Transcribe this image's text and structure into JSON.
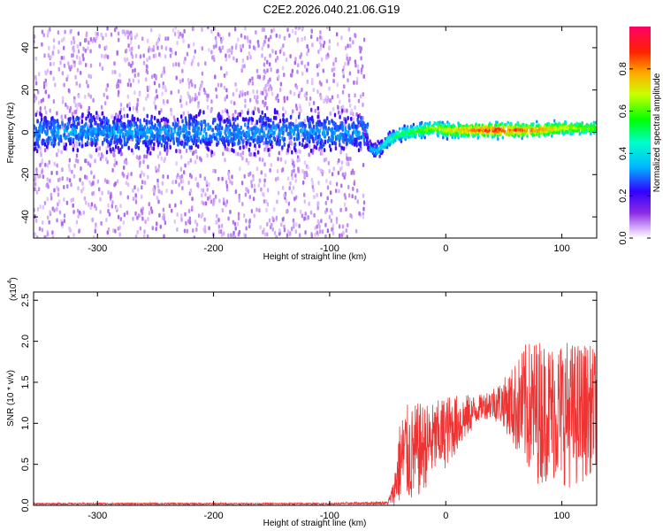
{
  "title": "C2E2.2026.040.21.06.G19",
  "colors": {
    "signal": "#ee3333",
    "axis": "#000000",
    "spectrogram_background": "#ffffff"
  },
  "chart_data": [
    {
      "type": "heatmap",
      "xlabel": "Height of straight line (km)",
      "ylabel": "Frequency (Hz)",
      "xlim": [
        -355,
        130
      ],
      "ylim": [
        -50,
        50
      ],
      "xticks": [
        -300,
        -200,
        -100,
        0,
        100
      ],
      "xtick_labels": [
        "-300",
        "-200",
        "-100",
        "0",
        "100"
      ],
      "yticks": [
        -40,
        -20,
        0,
        20,
        40
      ],
      "ytick_labels": [
        "-40",
        "-20",
        "0",
        "20",
        "40"
      ],
      "colormap": "rainbow",
      "colorbar": {
        "label": "Normalized spectral amplitude",
        "range": [
          0,
          1
        ],
        "ticks": [
          0.0,
          0.2,
          0.4,
          0.6,
          0.8
        ],
        "tick_labels": [
          "0.0",
          "0.2",
          "0.4",
          "0.6",
          "0.8"
        ]
      },
      "signal_track": {
        "x": [
          -355,
          -300,
          -200,
          -100,
          -70,
          -65,
          -60,
          -55,
          -50,
          -40,
          -30,
          -20,
          -10,
          0,
          20,
          40,
          60,
          80,
          100,
          130
        ],
        "y": [
          0,
          0,
          0,
          0,
          0,
          -8,
          -9,
          -7,
          -4,
          -1,
          0,
          1,
          2,
          1,
          1,
          1,
          1,
          1,
          2,
          2
        ],
        "amplitude": [
          0.15,
          0.15,
          0.15,
          0.15,
          0.15,
          0.3,
          0.35,
          0.4,
          0.45,
          0.5,
          0.55,
          0.6,
          0.65,
          0.7,
          0.8,
          0.9,
          0.85,
          0.8,
          0.7,
          0.6
        ],
        "noise_floor_x_end": -70,
        "noise_band_hz": 50
      }
    },
    {
      "type": "line",
      "xlabel": "Height of straight line (km)",
      "ylabel": "SNR (10 * v/v)",
      "y_multiplier": "(x10",
      "y_multiplier_exp": "4",
      "xlim": [
        -355,
        130
      ],
      "ylim": [
        0,
        2.6
      ],
      "xticks": [
        -300,
        -200,
        -100,
        0,
        100
      ],
      "xtick_labels": [
        "-300",
        "-200",
        "-100",
        "0",
        "100"
      ],
      "yticks": [
        0.0,
        0.5,
        1.0,
        1.5,
        2.0,
        2.5
      ],
      "ytick_labels": [
        "0.0",
        "0.5",
        "1.0",
        "1.5",
        "2.0",
        "2.5"
      ],
      "series": [
        {
          "x": [
            -355,
            -300,
            -200,
            -100,
            -50,
            -45,
            -40,
            -35,
            -30,
            -25,
            -20,
            -15,
            -10,
            -5,
            0,
            10,
            20,
            30,
            40,
            50,
            60,
            70,
            80,
            90,
            100,
            110,
            120,
            130
          ],
          "mean": [
            0.02,
            0.02,
            0.02,
            0.02,
            0.03,
            0.15,
            0.5,
            0.65,
            0.6,
            0.65,
            0.7,
            0.75,
            0.8,
            0.85,
            0.9,
            1.0,
            1.1,
            1.2,
            1.25,
            1.25,
            1.2,
            1.2,
            1.15,
            1.15,
            1.15,
            1.1,
            1.15,
            1.2
          ],
          "spread": [
            0.01,
            0.01,
            0.01,
            0.01,
            0.02,
            0.15,
            0.5,
            0.6,
            0.6,
            0.6,
            0.55,
            0.5,
            0.45,
            0.45,
            0.45,
            0.35,
            0.25,
            0.15,
            0.2,
            0.3,
            0.55,
            0.8,
            0.9,
            0.85,
            0.9,
            0.9,
            0.85,
            0.7
          ]
        }
      ]
    }
  ]
}
